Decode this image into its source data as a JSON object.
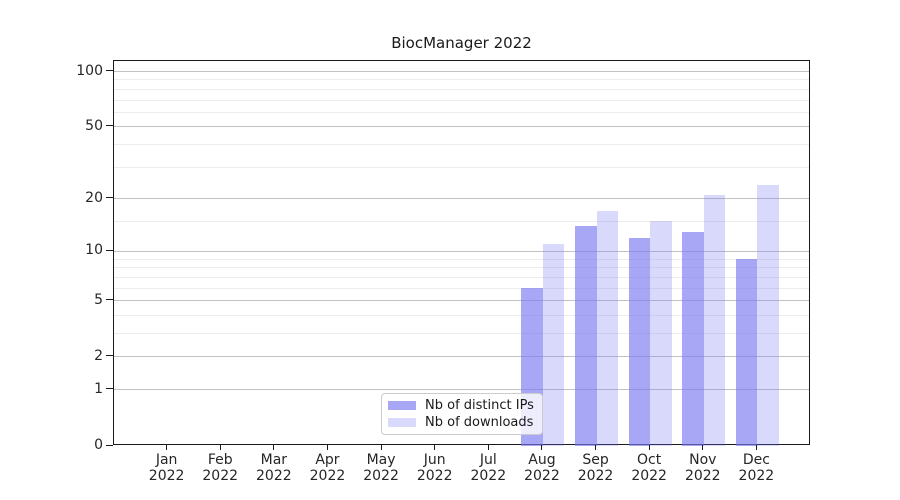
{
  "chart_data": {
    "type": "bar",
    "title": "BiocManager 2022",
    "xlabel": "",
    "ylabel": "",
    "categories": [
      "Jan",
      "Feb",
      "Mar",
      "Apr",
      "May",
      "Jun",
      "Jul",
      "Aug",
      "Sep",
      "Oct",
      "Nov",
      "Dec"
    ],
    "category_year": "2022",
    "series": [
      {
        "key": "distinct-ips",
        "name": "Nb of distinct IPs",
        "color": "rgba(120,120,240,0.65)",
        "values": [
          0,
          0,
          0,
          0,
          0,
          0,
          0,
          6,
          14,
          12,
          13,
          9
        ]
      },
      {
        "key": "downloads",
        "name": "Nb of downloads",
        "color": "rgba(120,120,240,0.28)",
        "values": [
          0,
          0,
          0,
          0,
          0,
          0,
          0,
          11,
          17,
          15,
          21,
          24
        ]
      }
    ],
    "y_axis": {
      "scale": "log1p",
      "ylim": [
        0,
        114
      ],
      "ticks": [
        0,
        1,
        2,
        5,
        10,
        20,
        50,
        100
      ],
      "minor_ticks": [
        3,
        4,
        6,
        7,
        8,
        9,
        15,
        30,
        40,
        60,
        70,
        80,
        90
      ]
    },
    "grid": "on",
    "legend_position": "lower center",
    "bar_width_fraction": 0.4
  },
  "colors": {
    "major_grid": "#c2c2c2",
    "minor_grid": "#ececec",
    "spine": "#1a1a1a",
    "tick_text": "#262626"
  }
}
